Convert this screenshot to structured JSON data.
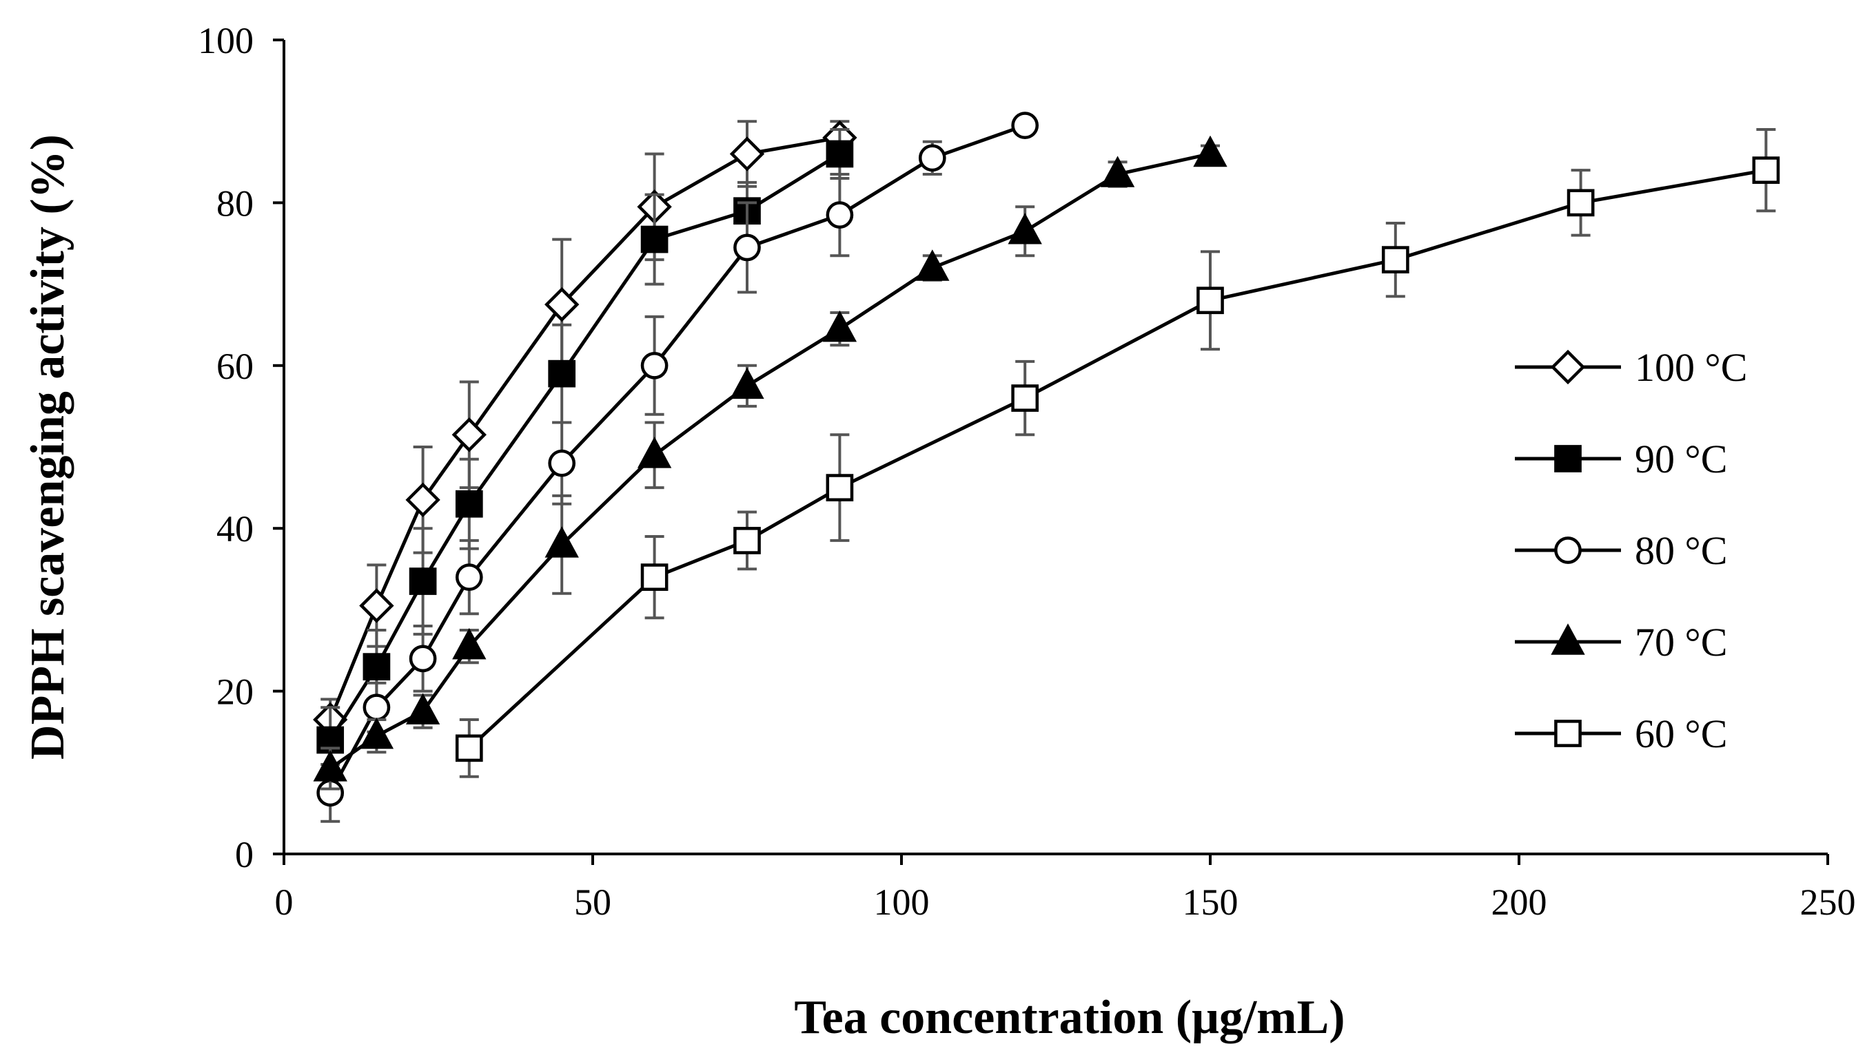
{
  "chart_data": {
    "type": "line",
    "title": "",
    "xlabel": "Tea concentration (μg/mL)",
    "ylabel": "DPPH scavenging activity (%)",
    "xlim": [
      0,
      250
    ],
    "ylim": [
      0,
      100
    ],
    "xticks": [
      "0",
      "50",
      "100",
      "150",
      "200",
      "250"
    ],
    "yticks": [
      "0",
      "20",
      "40",
      "60",
      "80",
      "100"
    ],
    "grid": false,
    "legend_position": "right",
    "series": [
      {
        "name": "100 °C",
        "marker": "diamond-open",
        "x": [
          7.5,
          15,
          22.5,
          30,
          45,
          60,
          75,
          90
        ],
        "y": [
          16.5,
          30.5,
          43.5,
          51.5,
          67.5,
          79.5,
          86,
          88
        ],
        "err": [
          2.5,
          5,
          6.5,
          6.5,
          8,
          6.5,
          4,
          2
        ]
      },
      {
        "name": "90 °C",
        "marker": "square-filled",
        "x": [
          7.5,
          15,
          22.5,
          30,
          45,
          60,
          75,
          90
        ],
        "y": [
          14,
          23,
          33.5,
          43,
          59,
          75.5,
          79,
          86
        ],
        "err": [
          4,
          4.5,
          6.5,
          5.5,
          6,
          5.5,
          3.5,
          3
        ]
      },
      {
        "name": "80 °C",
        "marker": "circle-open",
        "x": [
          7.5,
          15,
          22.5,
          30,
          45,
          60,
          75,
          90,
          105,
          120
        ],
        "y": [
          7.5,
          18,
          24,
          34,
          48,
          60,
          74.5,
          78.5,
          85.5,
          89.5
        ],
        "err": [
          3.5,
          3,
          4,
          4.5,
          5,
          6,
          5.5,
          5,
          2,
          1
        ]
      },
      {
        "name": "70 °C",
        "marker": "triangle-filled",
        "x": [
          7.5,
          15,
          22.5,
          30,
          45,
          60,
          75,
          90,
          105,
          120,
          135,
          150
        ],
        "y": [
          10.5,
          14.5,
          17.5,
          25.5,
          38,
          49,
          57.5,
          64.5,
          72,
          76.5,
          83.5,
          86
        ],
        "err": [
          2.5,
          2,
          2,
          2,
          6,
          4,
          2.5,
          2,
          1.5,
          3,
          1.5,
          1
        ]
      },
      {
        "name": "60 °C",
        "marker": "square-open",
        "x": [
          30,
          60,
          75,
          90,
          120,
          150,
          180,
          210,
          240
        ],
        "y": [
          13,
          34,
          38.5,
          45,
          56,
          68,
          73,
          80,
          84
        ],
        "err": [
          3.5,
          5,
          3.5,
          6.5,
          4.5,
          6,
          4.5,
          4,
          5
        ]
      }
    ]
  }
}
